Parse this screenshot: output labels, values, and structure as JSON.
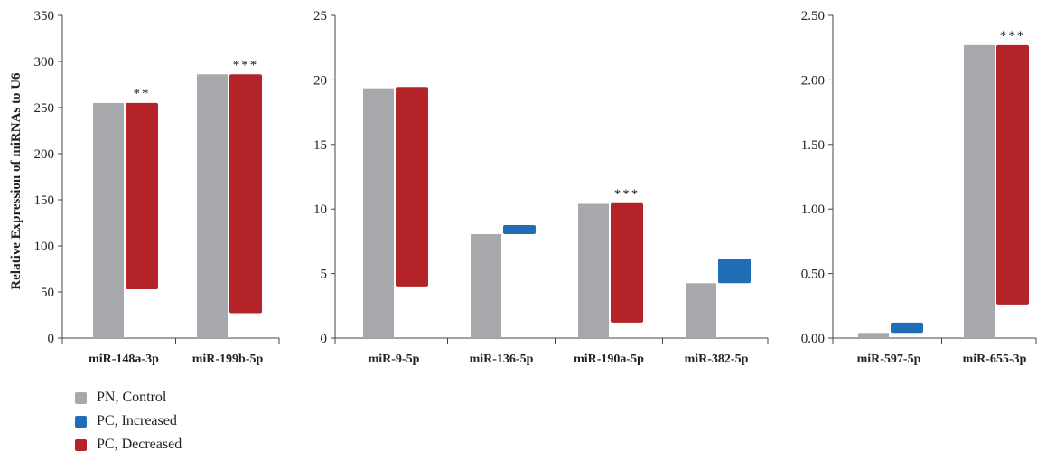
{
  "colors": {
    "control": "#a7a8ab",
    "increased": "#1f6db5",
    "decreased": "#b42328",
    "axis": "#444444"
  },
  "legend": [
    {
      "label": "PN, Control",
      "color_key": "control"
    },
    {
      "label": "PC, Increased",
      "color_key": "increased"
    },
    {
      "label": "PC, Decreased",
      "color_key": "decreased"
    }
  ],
  "chart_data": [
    {
      "type": "bar",
      "ylabel": "Relative Expression of miRNAs to U6",
      "ylim": [
        0,
        350
      ],
      "yticks": [
        "0",
        "50",
        "100",
        "150",
        "200",
        "250",
        "300",
        "350"
      ],
      "tick_values": [
        0,
        50,
        100,
        150,
        200,
        250,
        300,
        350
      ],
      "categories": [
        "miR-148a-3p",
        "miR-199b-5p"
      ],
      "series": [
        {
          "name": "PN, Control",
          "values": [
            255,
            286
          ]
        },
        {
          "name": "PC, Decreased",
          "ranges": [
            [
              53,
              255
            ],
            [
              27,
              286
            ]
          ]
        }
      ],
      "annotations": [
        "**",
        "***"
      ]
    },
    {
      "type": "bar",
      "ylabel": "",
      "ylim": [
        0,
        25
      ],
      "yticks": [
        "0",
        "5",
        "10",
        "15",
        "20",
        "25"
      ],
      "tick_values": [
        0,
        5,
        10,
        15,
        20,
        25
      ],
      "categories": [
        "miR-9-5p",
        "miR-136-5p",
        "miR-190a-5p",
        "miR-382-5p"
      ],
      "series": [
        {
          "name": "PN, Control",
          "values": [
            19.35,
            8.05,
            10.4,
            4.25
          ]
        },
        {
          "name": "PC, Increased",
          "ranges": [
            null,
            [
              8.05,
              8.75
            ],
            null,
            [
              4.25,
              6.15
            ]
          ]
        },
        {
          "name": "PC, Decreased",
          "ranges": [
            [
              4.0,
              19.45
            ],
            null,
            [
              1.2,
              10.45
            ],
            null
          ]
        }
      ],
      "annotations": [
        "",
        "",
        "***",
        ""
      ]
    },
    {
      "type": "bar",
      "ylabel": "",
      "ylim": [
        0,
        2.5
      ],
      "yticks": [
        "0.00",
        "0.50",
        "1.00",
        "1.50",
        "2.00",
        "2.50"
      ],
      "tick_values": [
        0,
        0.5,
        1.0,
        1.5,
        2.0,
        2.5
      ],
      "categories": [
        "miR-597-5p",
        "miR-655-3p"
      ],
      "series": [
        {
          "name": "PN, Control",
          "values": [
            0.04,
            2.27
          ]
        },
        {
          "name": "PC, Increased",
          "ranges": [
            [
              0.04,
              0.12
            ],
            null
          ]
        },
        {
          "name": "PC, Decreased",
          "ranges": [
            null,
            [
              0.26,
              2.27
            ]
          ]
        }
      ],
      "annotations": [
        "",
        "***"
      ]
    }
  ]
}
